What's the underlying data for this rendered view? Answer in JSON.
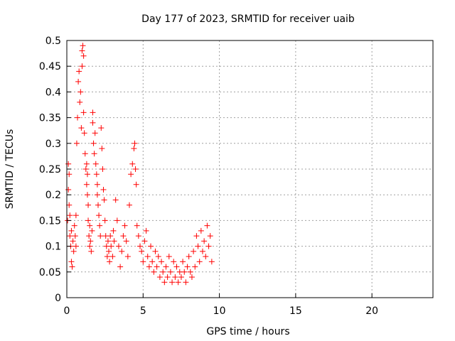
{
  "chart_data": {
    "type": "scatter",
    "title": "Day 177 of 2023, SRMTID for receiver uaib",
    "xlabel": "GPS time / hours",
    "ylabel": "SRMTID / TECUs",
    "xlim": [
      0,
      24
    ],
    "ylim": [
      0,
      0.5
    ],
    "xticks": [
      0,
      5,
      10,
      15,
      20
    ],
    "yticks": [
      0,
      0.05,
      0.1,
      0.15,
      0.2,
      0.25,
      0.3,
      0.35,
      0.4,
      0.45,
      0.5
    ],
    "ytick_labels": [
      "0",
      "0.05",
      "0.1",
      "0.15",
      "0.2",
      "0.25",
      "0.3",
      "0.35",
      "0.4",
      "0.45",
      "0.5"
    ],
    "grid": true,
    "marker": "plus",
    "color": "#ff0000",
    "series": [
      {
        "name": "SRMTID",
        "x": [
          0.05,
          0.1,
          0.1,
          0.15,
          0.15,
          0.2,
          0.2,
          0.25,
          0.3,
          0.3,
          0.35,
          0.4,
          0.45,
          0.5,
          0.55,
          0.6,
          0.6,
          0.65,
          0.7,
          0.75,
          0.8,
          0.85,
          0.9,
          0.95,
          1.0,
          1.0,
          1.05,
          1.1,
          1.1,
          1.15,
          1.2,
          1.25,
          1.3,
          1.3,
          1.35,
          1.35,
          1.4,
          1.4,
          1.45,
          1.5,
          1.5,
          1.55,
          1.6,
          1.65,
          1.7,
          1.7,
          1.75,
          1.8,
          1.85,
          1.9,
          1.95,
          2.0,
          2.0,
          2.05,
          2.1,
          2.15,
          2.2,
          2.25,
          2.3,
          2.35,
          2.4,
          2.45,
          2.5,
          2.55,
          2.6,
          2.65,
          2.7,
          2.75,
          2.8,
          2.85,
          2.9,
          3.0,
          3.05,
          3.1,
          3.2,
          3.3,
          3.4,
          3.5,
          3.6,
          3.7,
          3.8,
          3.9,
          4.0,
          4.1,
          4.2,
          4.3,
          4.4,
          4.45,
          4.5,
          4.55,
          4.6,
          4.7,
          4.8,
          4.9,
          5.0,
          5.1,
          5.2,
          5.3,
          5.4,
          5.5,
          5.6,
          5.7,
          5.8,
          5.9,
          6.0,
          6.1,
          6.2,
          6.3,
          6.4,
          6.5,
          6.6,
          6.7,
          6.8,
          6.9,
          7.0,
          7.1,
          7.2,
          7.3,
          7.4,
          7.5,
          7.6,
          7.7,
          7.8,
          7.9,
          8.0,
          8.1,
          8.2,
          8.3,
          8.4,
          8.5,
          8.6,
          8.7,
          8.8,
          8.9,
          9.0,
          9.1,
          9.2,
          9.3,
          9.4,
          9.5
        ],
        "y": [
          0.15,
          0.21,
          0.26,
          0.18,
          0.24,
          0.12,
          0.16,
          0.1,
          0.07,
          0.13,
          0.06,
          0.11,
          0.09,
          0.14,
          0.12,
          0.1,
          0.16,
          0.3,
          0.35,
          0.42,
          0.44,
          0.38,
          0.4,
          0.33,
          0.45,
          0.48,
          0.49,
          0.47,
          0.36,
          0.32,
          0.28,
          0.25,
          0.22,
          0.26,
          0.24,
          0.2,
          0.18,
          0.15,
          0.12,
          0.14,
          0.1,
          0.11,
          0.09,
          0.13,
          0.36,
          0.34,
          0.3,
          0.28,
          0.32,
          0.26,
          0.24,
          0.2,
          0.22,
          0.18,
          0.16,
          0.14,
          0.12,
          0.33,
          0.29,
          0.25,
          0.21,
          0.19,
          0.15,
          0.12,
          0.1,
          0.08,
          0.11,
          0.09,
          0.07,
          0.12,
          0.1,
          0.08,
          0.13,
          0.11,
          0.19,
          0.15,
          0.1,
          0.06,
          0.09,
          0.12,
          0.14,
          0.11,
          0.08,
          0.18,
          0.24,
          0.26,
          0.29,
          0.3,
          0.25,
          0.22,
          0.14,
          0.12,
          0.1,
          0.09,
          0.07,
          0.11,
          0.13,
          0.08,
          0.06,
          0.1,
          0.07,
          0.05,
          0.09,
          0.06,
          0.08,
          0.04,
          0.07,
          0.05,
          0.03,
          0.06,
          0.04,
          0.08,
          0.05,
          0.03,
          0.07,
          0.04,
          0.06,
          0.03,
          0.05,
          0.04,
          0.07,
          0.05,
          0.03,
          0.06,
          0.08,
          0.05,
          0.04,
          0.09,
          0.06,
          0.12,
          0.1,
          0.07,
          0.13,
          0.09,
          0.11,
          0.08,
          0.14,
          0.1,
          0.12,
          0.07
        ]
      }
    ]
  }
}
